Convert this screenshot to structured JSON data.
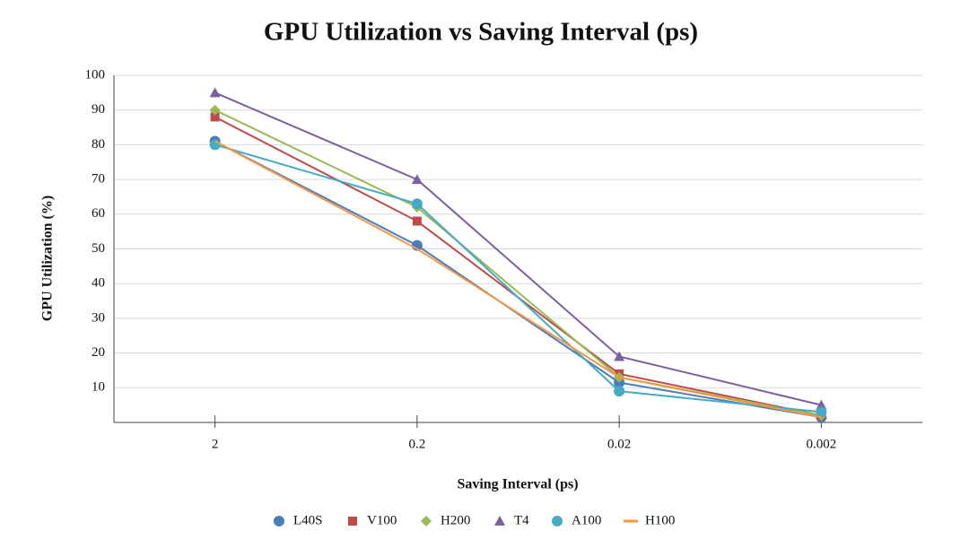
{
  "chart_data": {
    "type": "line",
    "title": "GPU Utilization vs Saving Interval (ps)",
    "x_label": "Saving Interval (ps)",
    "y_label": "GPU Utilization (%)",
    "categories": [
      "2",
      "0.2",
      "0.02",
      "0.002"
    ],
    "ylim": [
      0,
      100
    ],
    "yticks": [
      10,
      20,
      30,
      40,
      50,
      60,
      70,
      80,
      90,
      100
    ],
    "grid": true,
    "legend": "bottom",
    "series": [
      {
        "name": "L40S",
        "color": "#4a7ebb",
        "marker": "circle",
        "values": [
          81,
          51,
          11.5,
          1.5
        ]
      },
      {
        "name": "V100",
        "color": "#be4b48",
        "marker": "square",
        "values": [
          88,
          58,
          14,
          2
        ]
      },
      {
        "name": "H200",
        "color": "#98b954",
        "marker": "diamond",
        "values": [
          90,
          62,
          13,
          2
        ]
      },
      {
        "name": "T4",
        "color": "#7d60a0",
        "marker": "triangle",
        "values": [
          95,
          70,
          19,
          5
        ]
      },
      {
        "name": "A100",
        "color": "#46aac5",
        "marker": "circle",
        "values": [
          80,
          63,
          9,
          3
        ]
      },
      {
        "name": "H100",
        "color": "#f79646",
        "marker": "none",
        "values": [
          81,
          50,
          13,
          1.5
        ]
      }
    ]
  }
}
